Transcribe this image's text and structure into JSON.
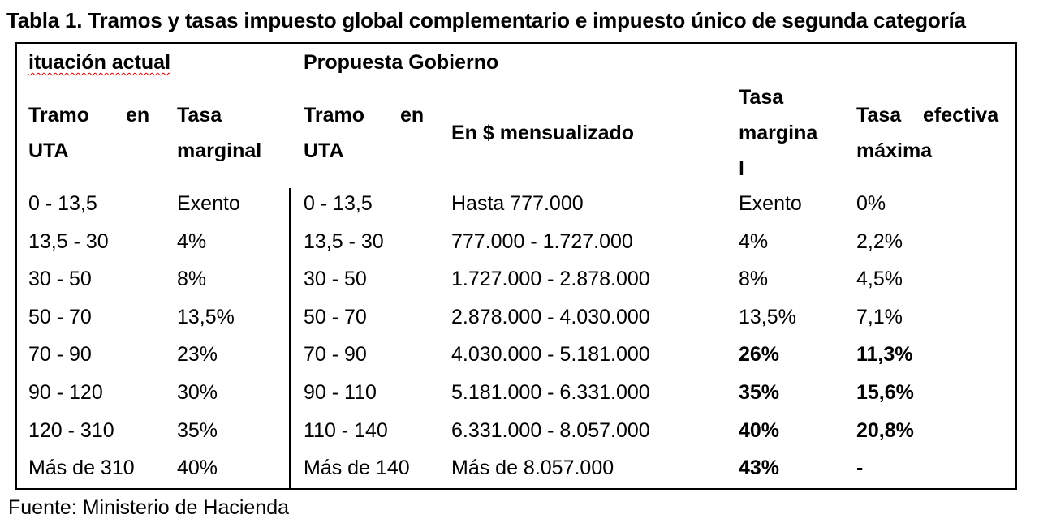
{
  "title": "Tabla 1. Tramos y tasas impuesto global complementario e impuesto único de segunda categoría",
  "groups": {
    "current": "ituación actual",
    "proposal": "Propuesta Gobierno"
  },
  "headers": {
    "tramo_current": [
      "Tramo",
      "en",
      "UTA"
    ],
    "tasa_current": [
      "Tasa",
      "marginal"
    ],
    "tramo_proposal": [
      "Tramo",
      "en",
      "UTA"
    ],
    "mensualizado": "En $ mensualizado",
    "tasa_proposal": [
      "Tasa",
      "margina",
      "l"
    ],
    "tasa_efectiva": [
      "Tasa",
      "efectiva",
      "máxima"
    ]
  },
  "rows": [
    {
      "tramo_actual": "0 - 13,5",
      "tasa_actual": "Exento",
      "tramo_prop": "0 - 13,5",
      "pesos": "Hasta 777.000",
      "tasa_prop": "Exento",
      "efectiva": "0%",
      "bold": false
    },
    {
      "tramo_actual": "13,5 - 30",
      "tasa_actual": "4%",
      "tramo_prop": "13,5 - 30",
      "pesos": "777.000 - 1.727.000",
      "tasa_prop": "4%",
      "efectiva": "2,2%",
      "bold": false
    },
    {
      "tramo_actual": "30 - 50",
      "tasa_actual": "8%",
      "tramo_prop": "30 - 50",
      "pesos": "1.727.000 - 2.878.000",
      "tasa_prop": "8%",
      "efectiva": "4,5%",
      "bold": false
    },
    {
      "tramo_actual": "50 - 70",
      "tasa_actual": "13,5%",
      "tramo_prop": "50 - 70",
      "pesos": "2.878.000 - 4.030.000",
      "tasa_prop": "13,5%",
      "efectiva": "7,1%",
      "bold": false
    },
    {
      "tramo_actual": "70 - 90",
      "tasa_actual": "23%",
      "tramo_prop": "70 - 90",
      "pesos": "4.030.000 - 5.181.000",
      "tasa_prop": "26%",
      "efectiva": "11,3%",
      "bold": true
    },
    {
      "tramo_actual": "90 - 120",
      "tasa_actual": "30%",
      "tramo_prop": "90 - 110",
      "pesos": "5.181.000 - 6.331.000",
      "tasa_prop": "35%",
      "efectiva": "15,6%",
      "bold": true
    },
    {
      "tramo_actual": "120 - 310",
      "tasa_actual": "35%",
      "tramo_prop": "110 - 140",
      "pesos": "6.331.000 - 8.057.000",
      "tasa_prop": "40%",
      "efectiva": "20,8%",
      "bold": true
    },
    {
      "tramo_actual": "Más de 310",
      "tasa_actual": "40%",
      "tramo_prop": "Más de 140",
      "pesos": "Más de 8.057.000",
      "tasa_prop": "43%",
      "efectiva": "-",
      "bold": true
    }
  ],
  "source": "Fuente: Ministerio de Hacienda"
}
